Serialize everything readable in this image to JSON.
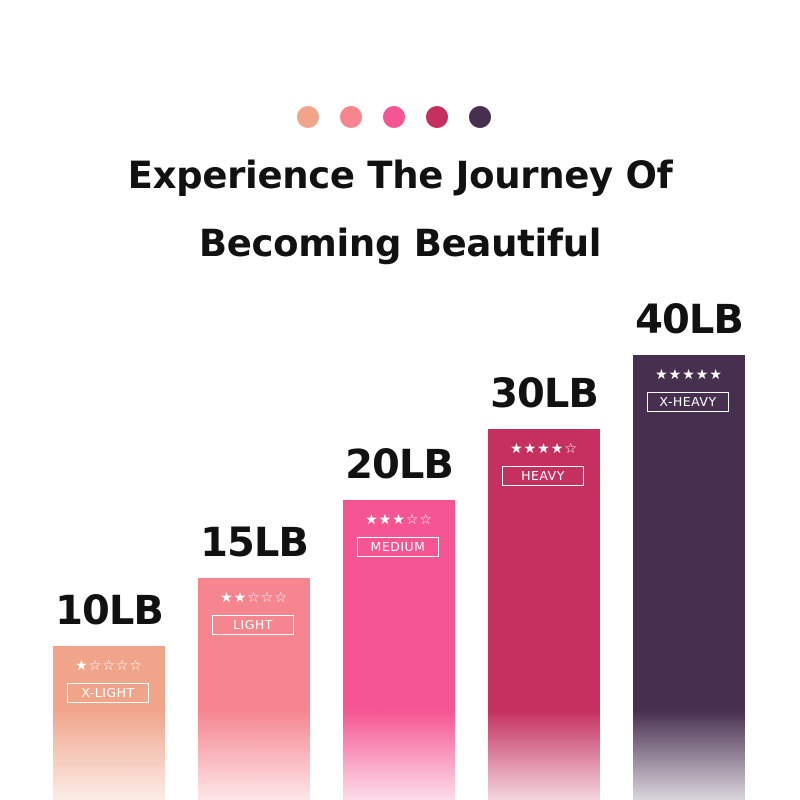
{
  "palette": [
    "#f0a58b",
    "#f5858f",
    "#f55592",
    "#c5305e",
    "#472f4f"
  ],
  "title_line1": "Experience The Journey Of",
  "title_line2": "Becoming Beautiful",
  "chart_data": {
    "type": "bar",
    "categories": [
      "10LB",
      "15LB",
      "20LB",
      "30LB",
      "40LB"
    ],
    "values": [
      10,
      15,
      20,
      30,
      40
    ],
    "levels": [
      "X-LIGHT",
      "LIGHT",
      "MEDIUM",
      "HEAVY",
      "X-HEAVY"
    ],
    "stars": [
      "★☆☆☆☆",
      "★★☆☆☆",
      "★★★☆☆",
      "★★★★☆",
      "★★★★★"
    ],
    "star_ratings": [
      1,
      2,
      3,
      4,
      5
    ],
    "colors": [
      "#f0a58b",
      "#f5858f",
      "#f55592",
      "#c5305e",
      "#472f4f"
    ]
  }
}
